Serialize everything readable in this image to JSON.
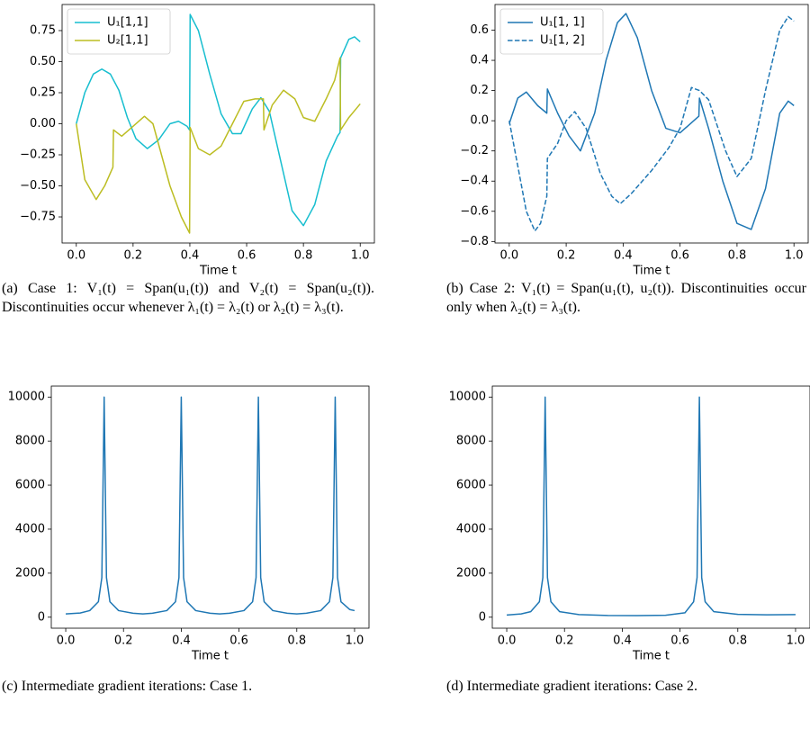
{
  "chart_data": [
    {
      "type": "line",
      "xlabel": "Time t",
      "xlim": [
        -0.05,
        1.05
      ],
      "ylim": [
        -0.96,
        0.96
      ],
      "xticks": [
        {
          "value": 0,
          "label": "0.0"
        },
        0.2,
        0.4,
        0.6,
        0.8,
        {
          "value": 1,
          "label": "1.0"
        }
      ],
      "yticks": [
        {
          "value": -0.75,
          "label": "−0.75"
        },
        {
          "value": -0.5,
          "label": "−0.50"
        },
        {
          "value": -0.25,
          "label": "−0.25"
        },
        {
          "value": 0,
          "label": "0.00"
        },
        0.25,
        {
          "value": 0.5,
          "label": "0.50"
        },
        0.75
      ],
      "legend": "upper left",
      "series": [
        {
          "name": "U₁[1,1]",
          "color": "#17becf",
          "linestyle": "solid",
          "x": [
            0,
            0.03,
            0.06,
            0.09,
            0.12,
            0.15,
            0.18,
            0.21,
            0.25,
            0.29,
            0.33,
            0.36,
            0.39,
            0.399,
            0.401,
            0.43,
            0.47,
            0.51,
            0.55,
            0.58,
            0.62,
            0.65,
            0.68,
            0.72,
            0.76,
            0.8,
            0.84,
            0.88,
            0.92,
            0.929,
            0.931,
            0.96,
            0.98,
            1.0
          ],
          "values": [
            0,
            0.25,
            0.4,
            0.44,
            0.4,
            0.27,
            0.05,
            -0.12,
            -0.2,
            -0.13,
            0,
            0.02,
            -0.02,
            -0.05,
            0.88,
            0.75,
            0.4,
            0.08,
            -0.08,
            -0.08,
            0.12,
            0.21,
            0.1,
            -0.3,
            -0.7,
            -0.82,
            -0.65,
            -0.3,
            -0.1,
            -0.07,
            0.53,
            0.68,
            0.7,
            0.66
          ]
        },
        {
          "name": "U₂[1,1]",
          "color": "#bcbd22",
          "linestyle": "solid",
          "x": [
            0,
            0.03,
            0.07,
            0.1,
            0.129,
            0.131,
            0.16,
            0.2,
            0.24,
            0.27,
            0.3,
            0.33,
            0.37,
            0.399,
            0.401,
            0.43,
            0.47,
            0.51,
            0.55,
            0.59,
            0.63,
            0.659,
            0.661,
            0.69,
            0.73,
            0.77,
            0.8,
            0.84,
            0.88,
            0.91,
            0.929,
            0.931,
            0.96,
            1.0
          ],
          "values": [
            0,
            -0.45,
            -0.61,
            -0.5,
            -0.35,
            -0.05,
            -0.1,
            -0.02,
            0.06,
            0,
            -0.25,
            -0.5,
            -0.75,
            -0.88,
            -0.03,
            -0.2,
            -0.25,
            -0.18,
            0,
            0.18,
            0.2,
            0.2,
            -0.05,
            0.15,
            0.27,
            0.2,
            0.05,
            0.02,
            0.2,
            0.35,
            0.53,
            -0.05,
            0.05,
            0.16
          ]
        }
      ]
    },
    {
      "type": "line",
      "xlabel": "Time t",
      "xlim": [
        -0.05,
        1.05
      ],
      "ylim": [
        -0.81,
        0.77
      ],
      "xticks": [
        {
          "value": 0,
          "label": "0.0"
        },
        0.2,
        0.4,
        0.6,
        0.8,
        {
          "value": 1,
          "label": "1.0"
        }
      ],
      "yticks": [
        {
          "value": -0.8,
          "label": "−0.8"
        },
        {
          "value": -0.6,
          "label": "−0.6"
        },
        {
          "value": -0.4,
          "label": "−0.4"
        },
        {
          "value": -0.2,
          "label": "−0.2"
        },
        {
          "value": 0,
          "label": "0.0"
        },
        0.2,
        0.4,
        0.6
      ],
      "legend": "upper left",
      "series": [
        {
          "name": "U₁[1, 1]",
          "color": "#1f77b4",
          "linestyle": "solid",
          "x": [
            0,
            0.03,
            0.06,
            0.1,
            0.132,
            0.134,
            0.17,
            0.21,
            0.25,
            0.3,
            0.34,
            0.38,
            0.41,
            0.45,
            0.5,
            0.55,
            0.6,
            0.666,
            0.668,
            0.7,
            0.75,
            0.8,
            0.85,
            0.9,
            0.95,
            0.98,
            1.0
          ],
          "values": [
            -0.02,
            0.15,
            0.19,
            0.1,
            0.05,
            0.21,
            0.05,
            -0.1,
            -0.2,
            0.05,
            0.4,
            0.65,
            0.71,
            0.55,
            0.2,
            -0.05,
            -0.08,
            0.03,
            0.15,
            -0.05,
            -0.4,
            -0.68,
            -0.72,
            -0.45,
            0.05,
            0.13,
            0.1
          ]
        },
        {
          "name": "U₁[1, 2]",
          "color": "#1f77b4",
          "linestyle": "dashed",
          "x": [
            0,
            0.03,
            0.06,
            0.09,
            0.11,
            0.132,
            0.134,
            0.17,
            0.2,
            0.23,
            0.27,
            0.32,
            0.36,
            0.39,
            0.43,
            0.5,
            0.56,
            0.6,
            0.64,
            0.668,
            0.7,
            0.76,
            0.8,
            0.85,
            0.9,
            0.95,
            0.98,
            1.0
          ],
          "values": [
            0,
            -0.3,
            -0.6,
            -0.73,
            -0.68,
            -0.5,
            -0.25,
            -0.15,
            0,
            0.06,
            -0.05,
            -0.35,
            -0.5,
            -0.55,
            -0.48,
            -0.33,
            -0.18,
            -0.05,
            0.22,
            0.2,
            0.14,
            -0.2,
            -0.37,
            -0.25,
            0.2,
            0.6,
            0.69,
            0.66
          ]
        }
      ]
    },
    {
      "type": "line",
      "xlabel": "Time t",
      "xlim": [
        -0.05,
        1.05
      ],
      "ylim": [
        -500,
        10500
      ],
      "xticks": [
        {
          "value": 0,
          "label": "0.0"
        },
        0.2,
        0.4,
        0.6,
        0.8,
        {
          "value": 1,
          "label": "1.0"
        }
      ],
      "yticks": [
        0,
        2000,
        4000,
        6000,
        8000,
        10000
      ],
      "series": [
        {
          "color": "#1f77b4",
          "linestyle": "solid",
          "x": [
            0,
            0.05,
            0.083,
            0.113,
            0.125,
            0.133,
            0.141,
            0.153,
            0.183,
            0.233,
            0.267,
            0.3,
            0.35,
            0.38,
            0.392,
            0.4,
            0.408,
            0.42,
            0.45,
            0.5,
            0.533,
            0.567,
            0.617,
            0.647,
            0.659,
            0.667,
            0.675,
            0.687,
            0.717,
            0.767,
            0.8,
            0.833,
            0.883,
            0.913,
            0.925,
            0.933,
            0.941,
            0.953,
            0.983,
            1.0
          ],
          "values": [
            150,
            190,
            300,
            700,
            1800,
            10000,
            1800,
            700,
            300,
            180,
            150,
            180,
            300,
            700,
            1800,
            10000,
            1800,
            700,
            300,
            180,
            150,
            180,
            300,
            700,
            1800,
            10000,
            1800,
            700,
            300,
            180,
            150,
            180,
            300,
            700,
            1800,
            10000,
            1800,
            700,
            350,
            300
          ]
        }
      ]
    },
    {
      "type": "line",
      "xlabel": "Time t",
      "xlim": [
        -0.05,
        1.05
      ],
      "ylim": [
        -500,
        10500
      ],
      "xticks": [
        {
          "value": 0,
          "label": "0.0"
        },
        0.2,
        0.4,
        0.6,
        0.8,
        {
          "value": 1,
          "label": "1.0"
        }
      ],
      "yticks": [
        0,
        2000,
        4000,
        6000,
        8000,
        10000
      ],
      "series": [
        {
          "color": "#1f77b4",
          "linestyle": "solid",
          "x": [
            0,
            0.05,
            0.083,
            0.113,
            0.125,
            0.133,
            0.141,
            0.153,
            0.183,
            0.25,
            0.35,
            0.45,
            0.55,
            0.617,
            0.647,
            0.659,
            0.667,
            0.675,
            0.687,
            0.717,
            0.8,
            0.9,
            1.0
          ],
          "values": [
            100,
            150,
            250,
            700,
            1800,
            10000,
            1800,
            700,
            250,
            120,
            80,
            70,
            90,
            200,
            700,
            1800,
            10000,
            1800,
            700,
            250,
            130,
            110,
            120
          ]
        }
      ]
    }
  ],
  "captions": [
    "(a) Case 1: V₁(t) = Span(u₁(t)) and V₂(t) = Span(u₂(t)). Discontinuities occur whenever λ₁(t) = λ₂(t) or λ₂(t) = λ₃(t).",
    "(b) Case 2: V₁(t) = Span(u₁(t), u₂(t)). Discontinuities occur only when λ₂(t) = λ₃(t).",
    "(c) Intermediate gradient iterations: Case 1.",
    "(d) Intermediate gradient iterations: Case 2."
  ]
}
